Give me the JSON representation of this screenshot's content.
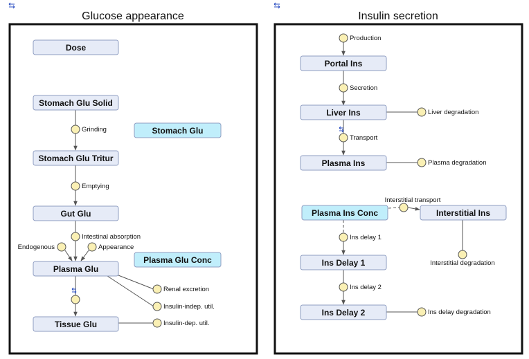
{
  "panels": {
    "left": {
      "title": "Glucose appearance",
      "stocks": {
        "dose": "Dose",
        "stomach_glu_solid": "Stomach Glu Solid",
        "stomach_glu_tritur": "Stomach Glu Tritur",
        "gut_glu": "Gut Glu",
        "plasma_glu": "Plasma Glu",
        "tissue_glu": "Tissue Glu"
      },
      "auxiliaries": {
        "stomach_glu": "Stomach Glu",
        "plasma_glu_conc": "Plasma Glu Conc"
      },
      "flows": {
        "grinding": "Grinding",
        "emptying": "Emptying",
        "intestinal_absorption": "Intestinal absorption",
        "endogenous": "Endogenous",
        "appearance": "Appearance",
        "renal_excretion": "Renal excretion",
        "insulin_indep_util": "Insulin-indep. util.",
        "insulin_dep_util": "Insulin-dep. util."
      }
    },
    "right": {
      "title": "Insulin secretion",
      "stocks": {
        "portal_ins": "Portal Ins",
        "liver_ins": "Liver Ins",
        "plasma_ins": "Plasma Ins",
        "interstitial_ins": "Interstitial Ins",
        "ins_delay_1": "Ins Delay 1",
        "ins_delay_2": "Ins Delay 2"
      },
      "auxiliaries": {
        "plasma_ins_conc": "Plasma Ins Conc"
      },
      "flows": {
        "production": "Production",
        "secretion": "Secretion",
        "liver_degradation": "Liver degradation",
        "transport": "Transport",
        "plasma_degradation": "Plasma degradation",
        "interstitial_transport": "Interstitial transport",
        "interstitial_degradation": "Interstitial degradation",
        "ins_delay_1_flow": "Ins delay 1",
        "ins_delay_2_flow": "Ins delay 2",
        "ins_delay_degradation": "Ins delay degradation"
      }
    }
  },
  "colors": {
    "stock_fill": "#e6ebf7",
    "aux_fill": "#c0eefb",
    "valve_fill": "#faf0b4",
    "border": "#8f9ec2",
    "line": "#555555"
  }
}
